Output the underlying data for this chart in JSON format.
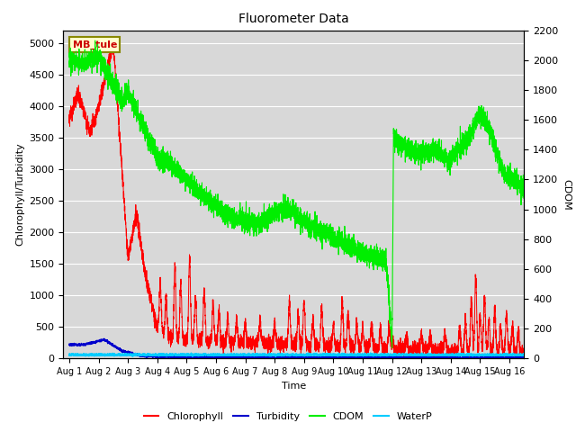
{
  "title": "Fluorometer Data",
  "xlabel": "Time",
  "ylabel_left": "Chlorophyll/Turbidity",
  "ylabel_right": "CDOM",
  "site_label": "MB_tule",
  "ylim_left": [
    0,
    5200
  ],
  "ylim_right": [
    0,
    2200
  ],
  "xlim": [
    -0.2,
    15.5
  ],
  "xtick_labels": [
    "Aug 1",
    "Aug 2",
    "Aug 3",
    "Aug 4",
    "Aug 5",
    "Aug 6",
    "Aug 7",
    "Aug 8",
    "Aug 9",
    "Aug 10",
    "Aug 11",
    "Aug 12",
    "Aug 13",
    "Aug 14",
    "Aug 15",
    "Aug 16"
  ],
  "xtick_positions": [
    0,
    1,
    2,
    3,
    4,
    5,
    6,
    7,
    8,
    9,
    10,
    11,
    12,
    13,
    14,
    15
  ],
  "yticks_left": [
    0,
    500,
    1000,
    1500,
    2000,
    2500,
    3000,
    3500,
    4000,
    4500,
    5000
  ],
  "yticks_right": [
    0,
    200,
    400,
    600,
    800,
    1000,
    1200,
    1400,
    1600,
    1800,
    2000,
    2200
  ],
  "colors": {
    "chlorophyll": "#ff0000",
    "turbidity": "#0000cc",
    "cdom": "#00ee00",
    "waterp": "#00ccff",
    "background": "#d8d8d8",
    "grid": "#ffffff",
    "site_box_bg": "#ffffcc",
    "site_box_edge": "#888800"
  },
  "legend_entries": [
    "Chlorophyll",
    "Turbidity",
    "CDOM",
    "WaterP"
  ]
}
